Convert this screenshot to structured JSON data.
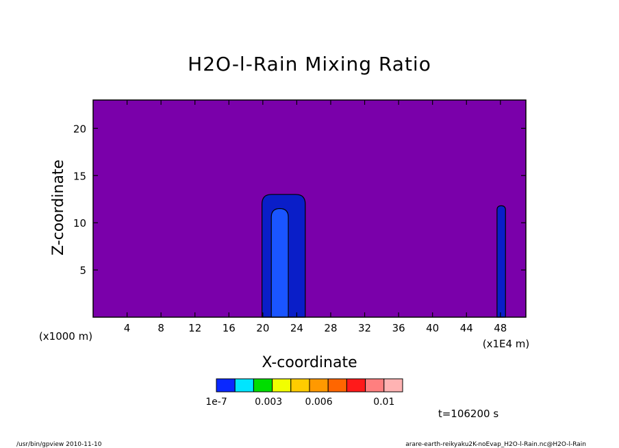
{
  "chart_data": {
    "type": "heatmap",
    "title": "H2O-l-Rain Mixing Ratio",
    "xlabel": "X-coordinate",
    "ylabel": "Z-coordinate",
    "x_unit": "(x1E4 m)",
    "y_unit": "(x1000 m)",
    "xlim": [
      0,
      51
    ],
    "ylim": [
      0,
      23
    ],
    "xticks": [
      4,
      8,
      12,
      16,
      20,
      24,
      28,
      32,
      36,
      40,
      44,
      48
    ],
    "yticks": [
      5,
      10,
      15,
      20
    ],
    "background_color": "#7a00aa",
    "cells": [
      {
        "name": "cell-1",
        "x": [
          19.9,
          25.0
        ],
        "z_top": 13.0,
        "level": "1e-7"
      },
      {
        "name": "cell-1-core",
        "x": [
          21.0,
          23.0
        ],
        "z_top": 11.5,
        "level": "higher"
      },
      {
        "name": "cell-2",
        "x": [
          47.6,
          48.6
        ],
        "z_top": 11.8,
        "level": "1e-7"
      }
    ],
    "colorbar": {
      "colors": [
        "#0a28ff",
        "#00e5ff",
        "#00dd00",
        "#f2ff00",
        "#ffcc00",
        "#ff9900",
        "#ff6600",
        "#ff1a1a",
        "#ff7f7f",
        "#ffb3b3"
      ],
      "labels": [
        "1e-7",
        "0.003",
        "0.006",
        "0.01"
      ]
    },
    "time_label": "t=106200 s"
  },
  "footer": {
    "left": "/usr/bin/gpview   2010-11-10",
    "right": "arare-earth-reikyaku2K-noEvap_H2O-l-Rain.nc@H2O-l-Rain"
  }
}
